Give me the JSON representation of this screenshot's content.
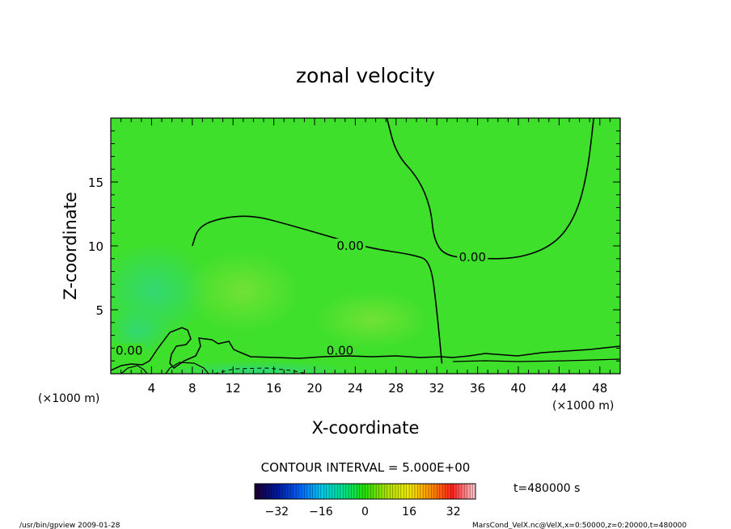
{
  "chart_data": {
    "type": "heatmap",
    "title": "zonal velocity",
    "xlabel": "X-coordinate",
    "ylabel": "Z-coordinate",
    "x_unit": "(×1000 m)",
    "y_unit": "(×1000 m)",
    "xlim": [
      0,
      50
    ],
    "ylim": [
      0,
      20
    ],
    "x_ticks": [
      4,
      8,
      12,
      16,
      20,
      24,
      28,
      32,
      36,
      40,
      44,
      48
    ],
    "y_ticks": [
      5,
      10,
      15
    ],
    "contour_interval_text": "CONTOUR INTERVAL = 5.000E+00",
    "contour_labels": [
      {
        "text": "0.00",
        "x": 23.5,
        "z": 10.0
      },
      {
        "text": "0.00",
        "x": 35.5,
        "z": 9.1
      },
      {
        "text": "0.00",
        "x": 1.8,
        "z": 1.8
      },
      {
        "text": "0.00",
        "x": 22.5,
        "z": 1.8
      }
    ],
    "zero_contour_lines": [
      {
        "name": "upper-left",
        "points": [
          [
            8,
            10
          ],
          [
            8.6,
            11.5
          ],
          [
            10.8,
            12.2
          ],
          [
            13.9,
            12.4
          ],
          [
            17.3,
            11.7
          ],
          [
            21.6,
            10.7
          ],
          [
            25.5,
            9.8
          ],
          [
            29.8,
            9.3
          ],
          [
            31.4,
            8.8
          ],
          [
            32.0,
            5.0
          ],
          [
            32.5,
            0.8
          ]
        ]
      },
      {
        "name": "right",
        "points": [
          [
            27.1,
            20
          ],
          [
            28,
            17.2
          ],
          [
            30.2,
            15.3
          ],
          [
            31.4,
            13.0
          ],
          [
            31.7,
            10.5
          ],
          [
            32.8,
            9.2
          ],
          [
            36,
            9.0
          ],
          [
            40,
            9.0
          ],
          [
            43.6,
            10.1
          ],
          [
            45.7,
            12.4
          ],
          [
            46.8,
            15.8
          ],
          [
            47.4,
            20
          ]
        ]
      }
    ],
    "colorbar": {
      "ticks": [
        -32,
        -16,
        0,
        16,
        32
      ],
      "range": [
        -40,
        40
      ],
      "colors": [
        "#1a0033",
        "#001a9e",
        "#0060ff",
        "#00c8e8",
        "#00e08a",
        "#22e000",
        "#aee000",
        "#f0e800",
        "#ff9000",
        "#ff2020",
        "#ffc0c8"
      ]
    },
    "time_text": "t=480000 s",
    "field_colors": {
      "background": "#3fe02c",
      "blue_green": "#30d87a",
      "yellow_green": "#6ee030"
    }
  },
  "footer": {
    "left": "/usr/bin/gpview  2009-01-28",
    "right": "MarsCond_VelX.nc@VelX,x=0:50000,z=0:20000,t=480000"
  }
}
